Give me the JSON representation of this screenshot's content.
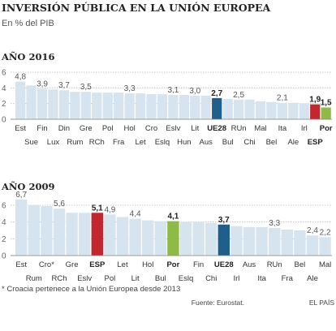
{
  "header": {
    "title": "INVERSIÓN PÚBLICA EN LA UNIÓN EUROPEA",
    "subtitle": "En % del PIB"
  },
  "footer": {
    "note": "* Croacia pertenece a la Unión Europea desde 2013",
    "source": "Fuente: Eurostat.",
    "credit": "EL PAÍS"
  },
  "colors": {
    "bar": "#d6e4ef",
    "ue28": "#1e5f8c",
    "spain": "#c4262e",
    "portugal": "#8dbb45",
    "gridline": "#bbbbbb"
  },
  "chart_data": [
    {
      "type": "bar",
      "title": "AÑO 2016",
      "ylim": [
        0,
        6
      ],
      "yticks": [
        0,
        2,
        4,
        6
      ],
      "grid": true,
      "categories": [
        "Est",
        "Sue",
        "Fin",
        "Lux",
        "Din",
        "Rum",
        "Gre",
        "RCh",
        "Pol",
        "Fra",
        "Hol",
        "Let",
        "Cro",
        "Eslq",
        "Eslv",
        "Hun",
        "Lit",
        "Aus",
        "UE28",
        "Bul",
        "RUn",
        "Chi",
        "Mal",
        "Bel",
        "Ita",
        "Ale",
        "Irl",
        "ESP",
        "Por"
      ],
      "values": [
        4.8,
        4.3,
        3.9,
        3.8,
        3.7,
        3.5,
        3.5,
        3.4,
        3.4,
        3.4,
        3.3,
        3.3,
        3.2,
        3.2,
        3.1,
        3.1,
        3.0,
        3.0,
        2.7,
        2.6,
        2.5,
        2.5,
        2.3,
        2.2,
        2.1,
        2.1,
        2.0,
        1.9,
        1.5
      ],
      "data_labels": {
        "0": "4,8",
        "2": "3,9",
        "4": "3,7",
        "6": "3,5",
        "10": "3,3",
        "14": "3,1",
        "16": "3,0",
        "18": "2,7",
        "20": "2,5",
        "24": "2,1",
        "27": "1,9",
        "28": "1,5"
      }
    },
    {
      "type": "bar",
      "title": "AÑO 2009",
      "ylim": [
        0,
        6
      ],
      "yticks": [
        0,
        2,
        4,
        6
      ],
      "grid": true,
      "categories": [
        "Est",
        "Rum",
        "Cro*",
        "RCh",
        "Gre",
        "Eslv",
        "ESP",
        "Pol",
        "Let",
        "Lit",
        "Hol",
        "Bul",
        "Por",
        "Eslq",
        "Fin",
        "Chi",
        "UE28",
        "Irl",
        "Aus",
        "Ita",
        "RUn",
        "Fra",
        "Bel",
        "Ale",
        "Mal"
      ],
      "values": [
        6.7,
        6.0,
        5.9,
        5.6,
        5.1,
        5.1,
        5.1,
        4.9,
        4.6,
        4.4,
        4.2,
        4.1,
        4.1,
        4.0,
        4.0,
        3.9,
        3.7,
        3.5,
        3.4,
        3.4,
        3.3,
        3.1,
        3.0,
        2.4,
        2.2
      ],
      "data_labels": {
        "0": "6,7",
        "3": "5,6",
        "6": "5,1",
        "7": "4,9",
        "9": "4,4",
        "12": "4,1",
        "16": "3,7",
        "20": "3,3",
        "23": "2,4",
        "24": "2,2"
      }
    }
  ]
}
